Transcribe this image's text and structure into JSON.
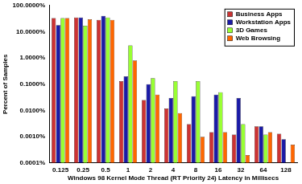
{
  "chart_data": {
    "type": "bar",
    "x_label": "Windows 98 Kernel Mode Thread (RT Priority 24) Latency in Millisecs",
    "y_label": "Percent of Samples",
    "categories": [
      "0.125",
      "0.25",
      "0.5",
      "1",
      "2",
      "4",
      "8",
      "16",
      "32",
      "64",
      "128"
    ],
    "series": [
      {
        "name": "Business Apps",
        "color": "#cc3333",
        "values": [
          33,
          35,
          28,
          0.13,
          0.025,
          0.012,
          0.003,
          0.0015,
          0.0012,
          0.0025,
          0.0013
        ]
      },
      {
        "name": "Workstation Apps",
        "color": "#1a1aa6",
        "values": [
          18,
          35,
          40,
          0.2,
          0.1,
          0.03,
          0.035,
          0.04,
          0.03,
          0.0025,
          0.0008
        ]
      },
      {
        "name": "3D Games",
        "color": "#99ff33",
        "values": [
          33,
          17,
          35,
          3,
          0.17,
          0.13,
          0.13,
          0.05,
          0.003,
          0.0012,
          null
        ]
      },
      {
        "name": "Web Browsing",
        "color": "#ff6600",
        "values": [
          33,
          30,
          28,
          0.8,
          0.04,
          0.008,
          0.001,
          0.0015,
          0.0002,
          0.0015,
          0.0005
        ]
      }
    ],
    "log": "y",
    "ylim": [
      0.0001,
      100
    ],
    "yticks": [
      {
        "value": 0.0001,
        "label": "0.0001%"
      },
      {
        "value": 0.001,
        "label": "0.0010%"
      },
      {
        "value": 0.01,
        "label": "0.0100%"
      },
      {
        "value": 0.1,
        "label": "0.1000%"
      },
      {
        "value": 1,
        "label": "1.0000%"
      },
      {
        "value": 10,
        "label": "10.0000%"
      },
      {
        "value": 100,
        "label": "100.0000%"
      }
    ],
    "grid": false,
    "legend": "top right"
  }
}
